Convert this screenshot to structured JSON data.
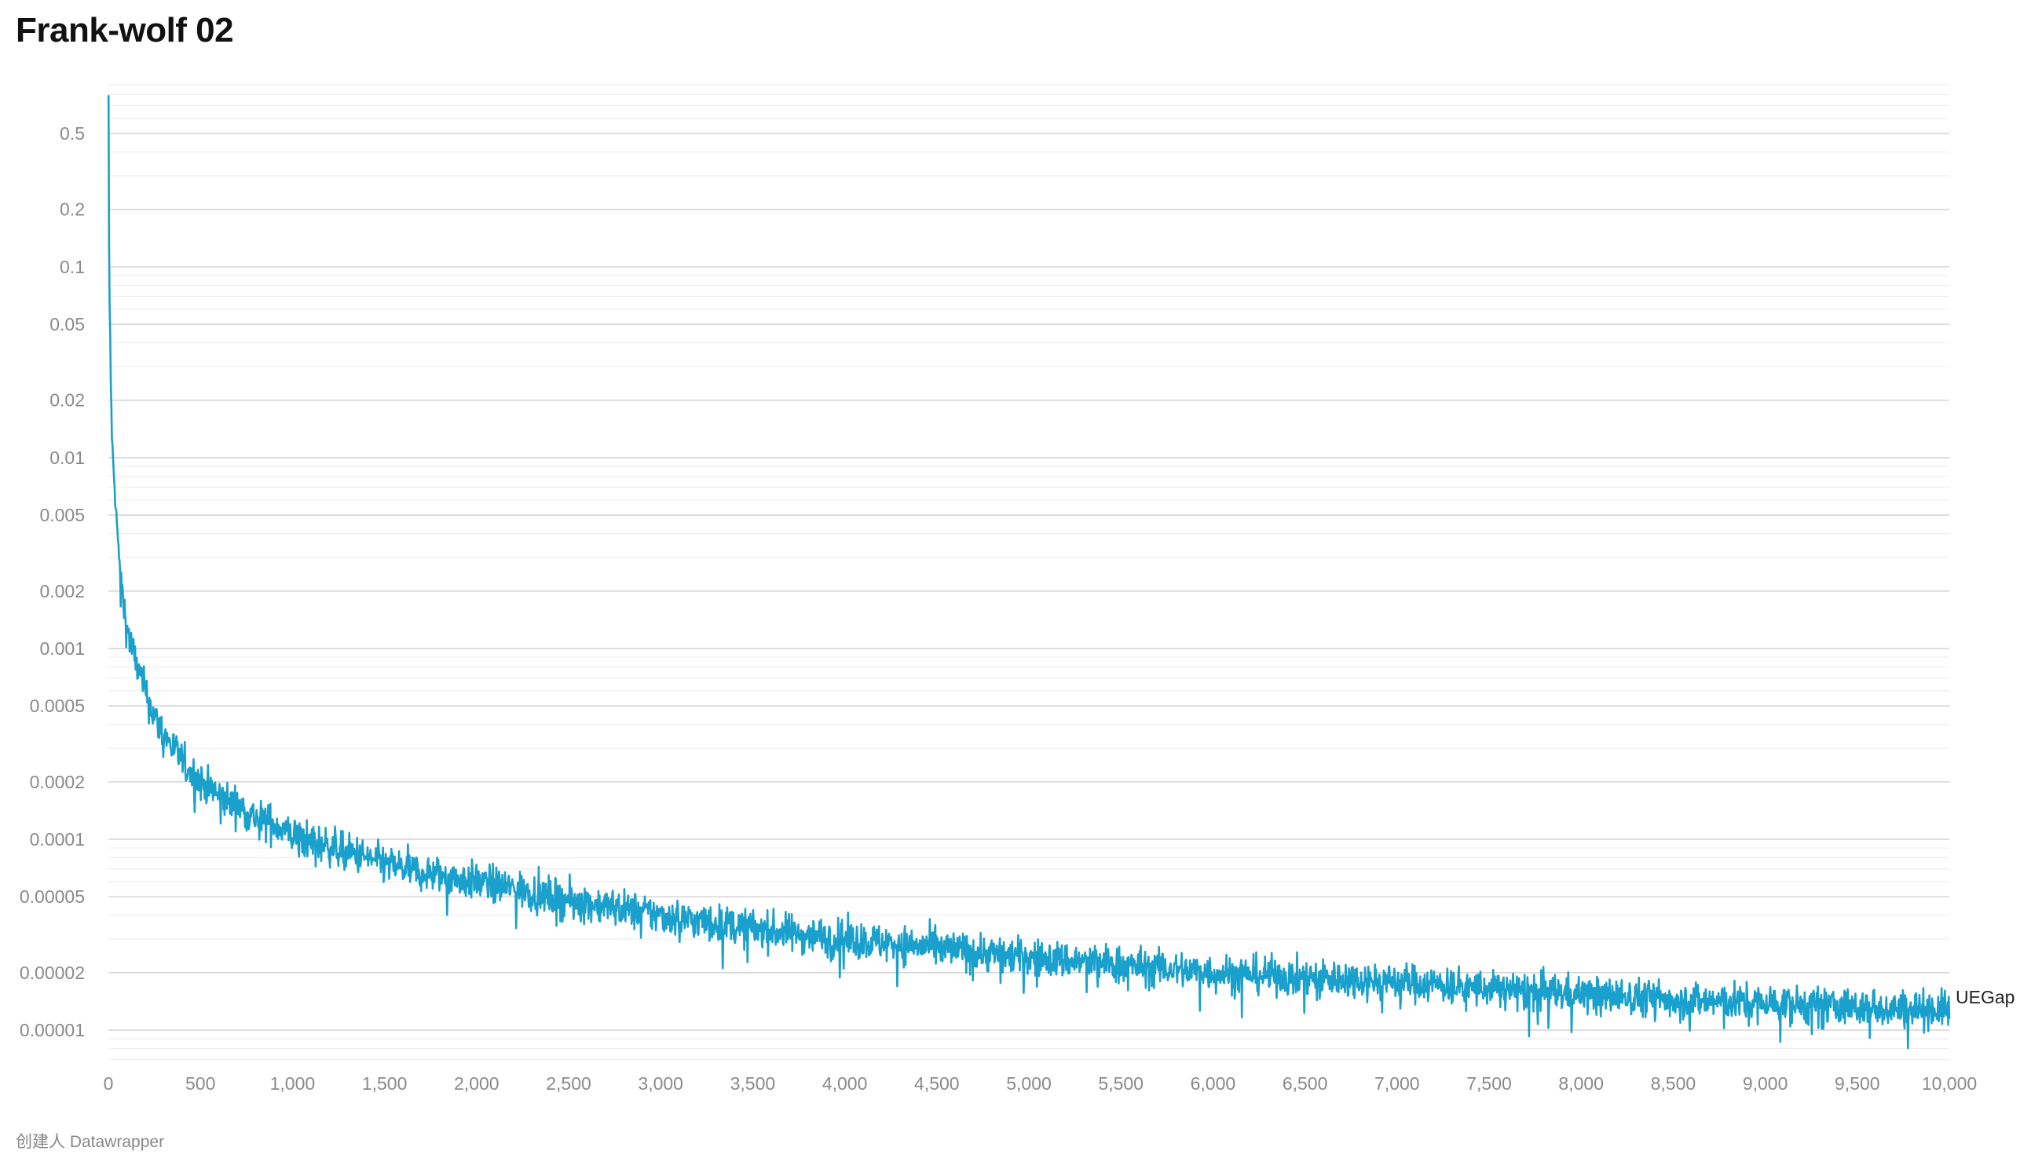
{
  "title": "Frank-wolf 02",
  "footer": "创建人 Datawrapper",
  "colors": {
    "series": "#1aa0cc",
    "grid_major": "#d6d6d6",
    "grid_minor": "#eeeeee",
    "tick_text": "#8a8a8a"
  },
  "chart_data": {
    "type": "line",
    "title": "Frank-wolf 02",
    "xlabel": "",
    "ylabel": "",
    "x_scale": "linear",
    "y_scale": "log",
    "xlim": [
      0,
      10000
    ],
    "ylim": [
      8.5e-06,
      0.8
    ],
    "grid": true,
    "legend": "direct label at line end",
    "x_ticks": [
      {
        "value": 0,
        "label": "0"
      },
      {
        "value": 500,
        "label": "500"
      },
      {
        "value": 1000,
        "label": "1,000"
      },
      {
        "value": 1500,
        "label": "1,500"
      },
      {
        "value": 2000,
        "label": "2,000"
      },
      {
        "value": 2500,
        "label": "2,500"
      },
      {
        "value": 3000,
        "label": "3,000"
      },
      {
        "value": 3500,
        "label": "3,500"
      },
      {
        "value": 4000,
        "label": "4,000"
      },
      {
        "value": 4500,
        "label": "4,500"
      },
      {
        "value": 5000,
        "label": "5,000"
      },
      {
        "value": 5500,
        "label": "5,500"
      },
      {
        "value": 6000,
        "label": "6,000"
      },
      {
        "value": 6500,
        "label": "6,500"
      },
      {
        "value": 7000,
        "label": "7,000"
      },
      {
        "value": 7500,
        "label": "7,500"
      },
      {
        "value": 8000,
        "label": "8,000"
      },
      {
        "value": 8500,
        "label": "8,500"
      },
      {
        "value": 9000,
        "label": "9,000"
      },
      {
        "value": 9500,
        "label": "9,500"
      },
      {
        "value": 10000,
        "label": "10,000"
      }
    ],
    "y_ticks": [
      {
        "value": 0.5,
        "label": "0.5"
      },
      {
        "value": 0.2,
        "label": "0.2"
      },
      {
        "value": 0.1,
        "label": "0.1"
      },
      {
        "value": 0.05,
        "label": "0.05"
      },
      {
        "value": 0.02,
        "label": "0.02"
      },
      {
        "value": 0.01,
        "label": "0.01"
      },
      {
        "value": 0.005,
        "label": "0.005"
      },
      {
        "value": 0.002,
        "label": "0.002"
      },
      {
        "value": 0.001,
        "label": "0.001"
      },
      {
        "value": 0.0005,
        "label": "0.0005"
      },
      {
        "value": 0.0002,
        "label": "0.0002"
      },
      {
        "value": 0.0001,
        "label": "0.0001"
      },
      {
        "value": 5e-05,
        "label": "0.00005"
      },
      {
        "value": 2e-05,
        "label": "0.00002"
      },
      {
        "value": 1e-05,
        "label": "0.00001"
      }
    ],
    "series": [
      {
        "name": "UEGap",
        "x": [
          1,
          3,
          5,
          10,
          15,
          20,
          30,
          40,
          50,
          60,
          80,
          100,
          150,
          200,
          250,
          300,
          400,
          500,
          600,
          700,
          800,
          900,
          1000,
          1200,
          1400,
          1500,
          1750,
          2000,
          2250,
          2500,
          2750,
          3000,
          3500,
          4000,
          4500,
          5000,
          5500,
          6000,
          6500,
          7000,
          7500,
          8000,
          8500,
          9000,
          9500,
          10000
        ],
        "values": [
          0.75,
          0.2,
          0.08,
          0.045,
          0.02,
          0.012,
          0.008,
          0.0055,
          0.004,
          0.0028,
          0.0018,
          0.0013,
          0.00085,
          0.0006,
          0.00044,
          0.00036,
          0.00026,
          0.0002,
          0.00017,
          0.00015,
          0.00013,
          0.00012,
          0.000105,
          9.2e-05,
          8e-05,
          7.4e-05,
          6.6e-05,
          6e-05,
          5.4e-05,
          4.8e-05,
          4.4e-05,
          4e-05,
          3.4e-05,
          3e-05,
          2.7e-05,
          2.4e-05,
          2.2e-05,
          2e-05,
          1.9e-05,
          1.8e-05,
          1.65e-05,
          1.55e-05,
          1.45e-05,
          1.38e-05,
          1.32e-05,
          1.28e-05
        ]
      }
    ]
  }
}
